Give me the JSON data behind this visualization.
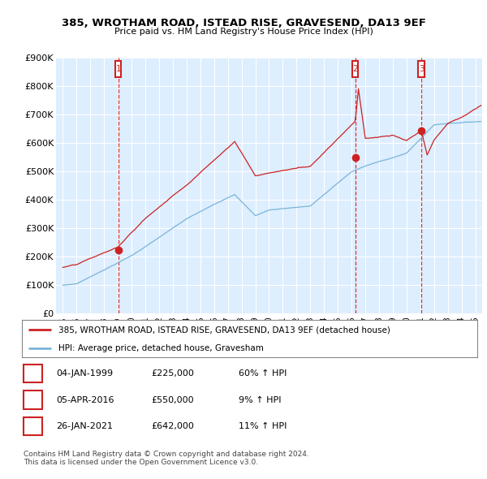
{
  "title": "385, WROTHAM ROAD, ISTEAD RISE, GRAVESEND, DA13 9EF",
  "subtitle": "Price paid vs. HM Land Registry's House Price Index (HPI)",
  "ylabel_ticks": [
    "£0",
    "£100K",
    "£200K",
    "£300K",
    "£400K",
    "£500K",
    "£600K",
    "£700K",
    "£800K",
    "£900K"
  ],
  "ylim": [
    0,
    900000
  ],
  "xlim_start": 1994.5,
  "xlim_end": 2025.5,
  "hpi_color": "#7ab4d8",
  "hpi_fill_color": "#cce4f5",
  "price_color": "#cc2222",
  "background_color": "#ffffff",
  "chart_bg_color": "#ddeeff",
  "grid_color": "#ffffff",
  "sales": [
    {
      "date": 1999.03,
      "price": 225000,
      "label": "1"
    },
    {
      "date": 2016.27,
      "price": 550000,
      "label": "2"
    },
    {
      "date": 2021.07,
      "price": 642000,
      "label": "3"
    }
  ],
  "table_rows": [
    [
      "1",
      "04-JAN-1999",
      "£225,000",
      "60% ↑ HPI"
    ],
    [
      "2",
      "05-APR-2016",
      "£550,000",
      "9% ↑ HPI"
    ],
    [
      "3",
      "26-JAN-2021",
      "£642,000",
      "11% ↑ HPI"
    ]
  ],
  "legend_label_red": "385, WROTHAM ROAD, ISTEAD RISE, GRAVESEND, DA13 9EF (detached house)",
  "legend_label_blue": "HPI: Average price, detached house, Gravesham",
  "footnote": "Contains HM Land Registry data © Crown copyright and database right 2024.\nThis data is licensed under the Open Government Licence v3.0."
}
